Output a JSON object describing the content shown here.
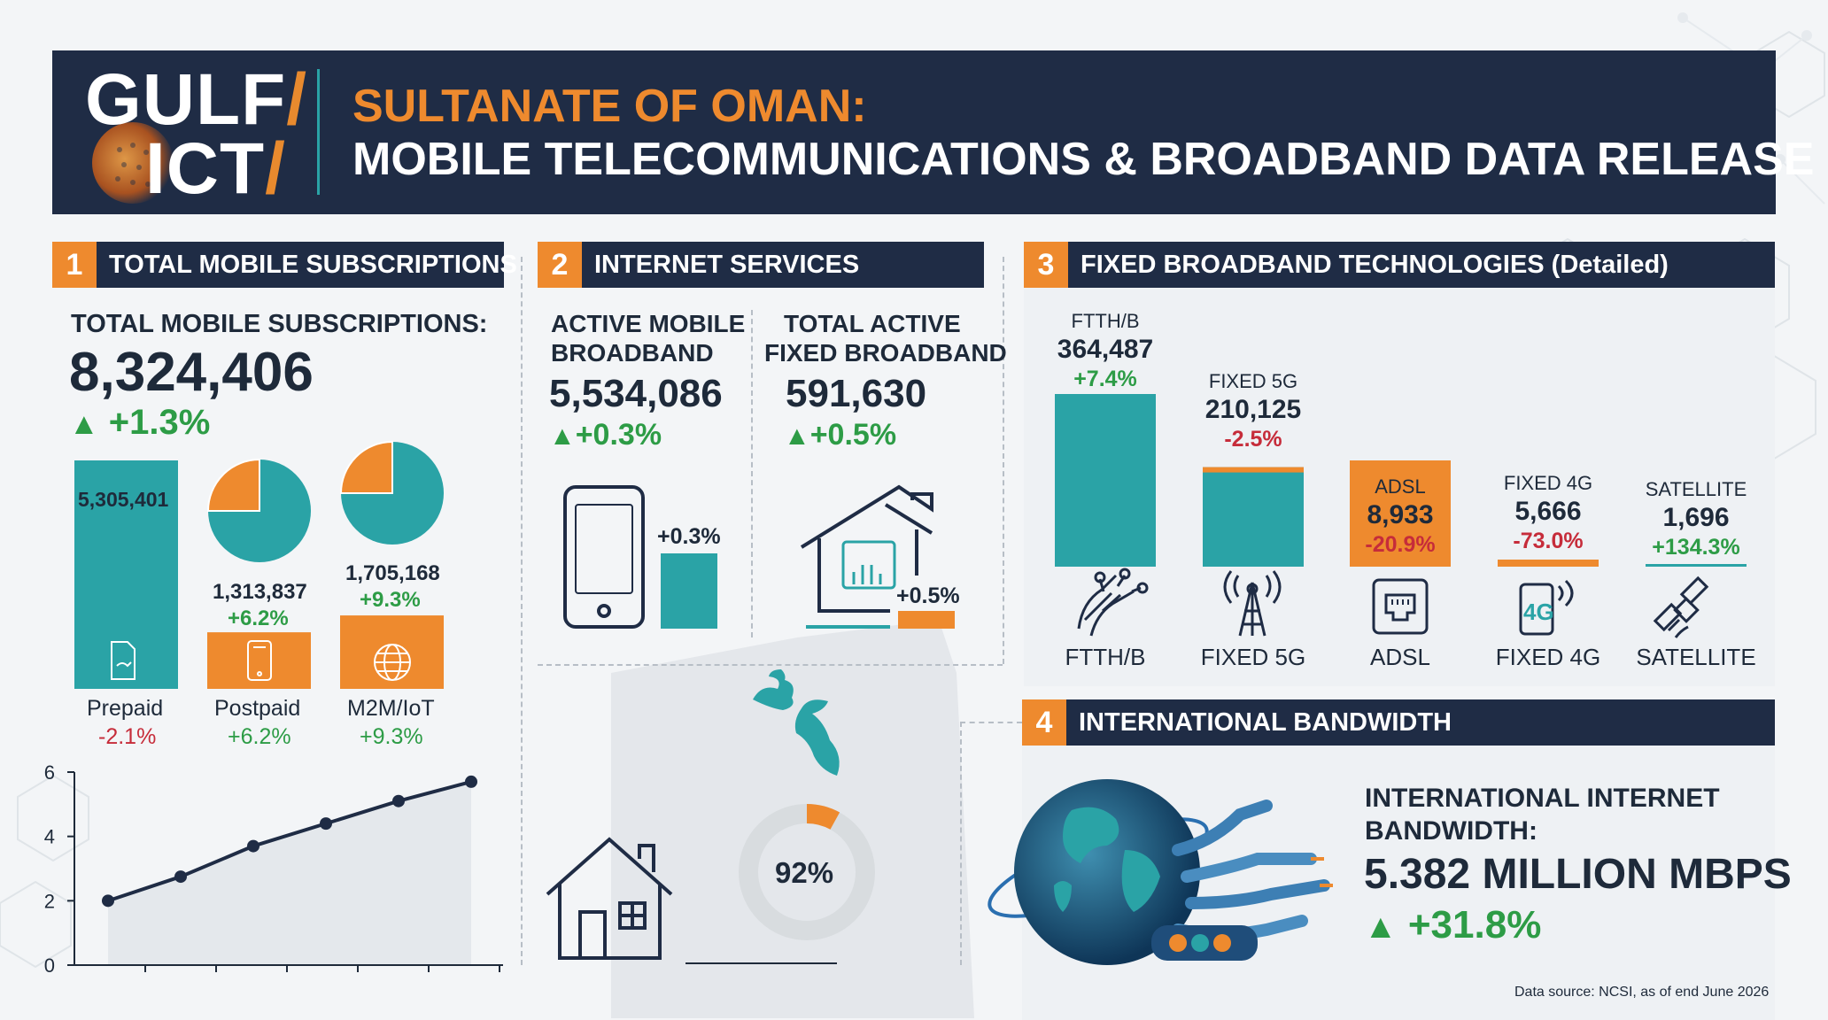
{
  "header": {
    "logo_top": "GULF",
    "logo_bottom": "ICT",
    "title_line1": "SULTANATE OF OMAN:",
    "title_line2": "MOBILE TELECOMMUNICATIONS & BROADBAND DATA RELEASE"
  },
  "section1": {
    "number": "1",
    "title": "TOTAL MOBILE SUBSCRIPTIONS",
    "total_label": "TOTAL MOBILE SUBSCRIPTIONS:",
    "total_value": "8,324,406",
    "total_change": "+1.3%",
    "bars": [
      {
        "name": "Prepaid",
        "value_label": "5,305,401",
        "change": "-2.1%"
      },
      {
        "name": "Postpaid",
        "value_label": "1,313,837",
        "value_change": "+6.2%",
        "change": "+6.2%"
      },
      {
        "name": "M2M/IoT",
        "value_label": "1,705,168",
        "value_change": "+9.3%",
        "change": "+9.3%"
      }
    ]
  },
  "section2": {
    "number": "2",
    "title": "INTERNET SERVICES",
    "mobile_label_1": "ACTIVE MOBILE",
    "mobile_label_2": "BROADBAND",
    "mobile_value": "5,534,086",
    "mobile_change": "+0.3%",
    "mobile_bar_label": "+0.3%",
    "fixed_label_1": "TOTAL ACTIVE",
    "fixed_label_2": "FIXED BROADBAND",
    "fixed_value": "591,630",
    "fixed_change": "+0.5%",
    "fixed_bar_label": "+0.5%",
    "coverage_value": "92%",
    "coverage_fraction": 0.92
  },
  "section3": {
    "number": "3",
    "title": "FIXED BROADBAND TECHNOLOGIES (Detailed)",
    "techs": [
      {
        "label": "FTTH/B",
        "value": "364,487",
        "change": "+7.4%",
        "caption": "FTTH/B",
        "icon": "fiber-icon"
      },
      {
        "label": "FIXED 5G",
        "value": "210,125",
        "change": "-2.5%",
        "caption": "FIXED 5G",
        "icon": "tower-icon"
      },
      {
        "label": "ADSL",
        "value": "8,933",
        "change": "-20.9%",
        "caption": "ADSL",
        "icon": "ethernet-port-icon"
      },
      {
        "label": "FIXED 4G",
        "value": "5,666",
        "change": "-73.0%",
        "caption": "FIXED 4G",
        "icon": "phone-4g-icon"
      },
      {
        "label": "SATELLITE",
        "value": "1,696",
        "change": "+134.3%",
        "caption": "SATELLITE",
        "icon": "satellite-icon"
      }
    ]
  },
  "section4": {
    "number": "4",
    "title": "INTERNATIONAL BANDWIDTH",
    "label_1": "INTERNATIONAL INTERNET",
    "label_2": "BANDWIDTH:",
    "value": "5.382 MILLION MBPS",
    "change": "+31.8%"
  },
  "footer": {
    "source": "Data source: NCSI, as of end June 2026"
  },
  "colors": {
    "navy": "#1f2c45",
    "orange": "#ee8a2e",
    "teal": "#2aa3a6",
    "green": "#2d9c46",
    "red": "#c62c3a"
  },
  "chart_data": [
    {
      "type": "bar",
      "categories": [
        "Prepaid",
        "Postpaid",
        "M2M/IoT"
      ],
      "values": [
        5305401,
        1313837,
        1705168
      ],
      "changes": [
        "-2.1%",
        "+6.2%",
        "+9.3%"
      ]
    },
    {
      "type": "pie",
      "categories": [
        "Postpaid",
        "other"
      ],
      "values": [
        0.16,
        0.84
      ]
    },
    {
      "type": "pie",
      "categories": [
        "M2M/IoT",
        "other"
      ],
      "values": [
        0.2,
        0.8
      ]
    },
    {
      "type": "line",
      "x": [
        1,
        2,
        3,
        4,
        5,
        6
      ],
      "values": [
        2.0,
        2.75,
        3.7,
        4.4,
        5.1,
        5.7
      ],
      "yticks": [
        "0",
        "2",
        "4",
        "6"
      ],
      "ylim": [
        0,
        6
      ],
      "grid": false
    },
    {
      "type": "bar",
      "categories": [
        "FTTH/B",
        "FIXED 5G",
        "ADSL",
        "FIXED 4G",
        "SATELLITE"
      ],
      "values": [
        364487,
        210125,
        8933,
        5666,
        1696
      ]
    },
    {
      "type": "pie",
      "categories": [
        "coverage",
        "remaining"
      ],
      "values": [
        92,
        8
      ],
      "label": "92%"
    }
  ]
}
